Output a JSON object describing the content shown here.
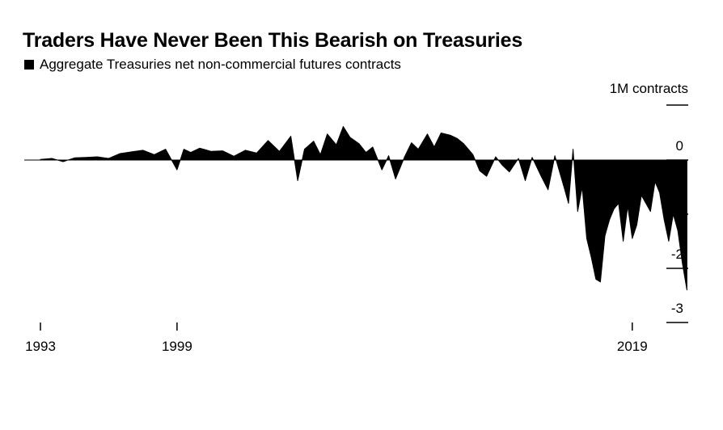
{
  "chart_data": {
    "type": "area",
    "title": "Traders Have Never Been This Bearish on Treasuries",
    "legend": [
      {
        "label": "Aggregate Treasuries net non-commercial futures contracts",
        "color": "#000000"
      }
    ],
    "unit_label": "1M contracts",
    "xlabel": "",
    "ylabel": "",
    "x_ticks": [
      {
        "label": "1993",
        "value": 1993
      },
      {
        "label": "1999",
        "value": 1999
      },
      {
        "label": "2019",
        "value": 2019
      }
    ],
    "y_ticks": [
      {
        "label": "0",
        "value": 0
      },
      {
        "label": "-1",
        "value": -1
      },
      {
        "label": "-2",
        "value": -2
      },
      {
        "label": "-3",
        "value": -3
      }
    ],
    "xlim": [
      1993,
      2021.6
    ],
    "ylim": [
      -3,
      1
    ],
    "grid": false,
    "legend_position": "top-left",
    "color": "#000000",
    "series": [
      {
        "x": [
          1993.0,
          1993.5,
          1994.0,
          1994.5,
          1995.0,
          1995.5,
          1996.0,
          1996.5,
          1997.0,
          1997.5,
          1998.0,
          1998.5,
          1999.0,
          1999.3,
          1999.6,
          2000.0,
          2000.5,
          2001.0,
          2001.5,
          2002.0,
          2002.5,
          2003.0,
          2003.5,
          2004.0,
          2004.3,
          2004.6,
          2005.0,
          2005.3,
          2005.6,
          2006.0,
          2006.3,
          2006.6,
          2007.0,
          2007.3,
          2007.6,
          2008.0,
          2008.3,
          2008.6,
          2009.0,
          2009.3,
          2009.6,
          2010.0,
          2010.3,
          2010.6,
          2011.0,
          2011.3,
          2011.6,
          2012.0,
          2012.3,
          2012.6,
          2013.0,
          2013.3,
          2013.6,
          2014.0,
          2014.3,
          2014.6,
          2015.0,
          2015.3,
          2015.6,
          2016.0,
          2016.2,
          2016.4,
          2016.6,
          2016.8,
          2017.0,
          2017.2,
          2017.4,
          2017.6,
          2017.8,
          2018.0,
          2018.2,
          2018.4,
          2018.6,
          2018.8,
          2019.0,
          2019.2,
          2019.4,
          2019.6,
          2019.8,
          2020.0,
          2020.2,
          2020.4,
          2020.6,
          2020.8,
          2021.0,
          2021.2,
          2021.4
        ],
        "y": [
          0.01,
          0.03,
          -0.03,
          0.04,
          0.05,
          0.06,
          0.03,
          0.12,
          0.15,
          0.18,
          0.1,
          0.2,
          -0.18,
          0.2,
          0.14,
          0.22,
          0.16,
          0.17,
          0.07,
          0.18,
          0.13,
          0.36,
          0.16,
          0.44,
          -0.38,
          0.2,
          0.35,
          0.1,
          0.48,
          0.28,
          0.62,
          0.42,
          0.3,
          0.14,
          0.24,
          -0.18,
          0.08,
          -0.35,
          0.06,
          0.32,
          0.2,
          0.48,
          0.24,
          0.5,
          0.46,
          0.4,
          0.3,
          0.1,
          -0.2,
          -0.3,
          0.06,
          -0.1,
          -0.22,
          0.03,
          -0.38,
          0.05,
          -0.3,
          -0.55,
          0.08,
          -0.5,
          -0.8,
          0.2,
          -0.95,
          -0.5,
          -1.45,
          -1.8,
          -2.2,
          -2.25,
          -1.4,
          -1.1,
          -0.9,
          -0.8,
          -1.5,
          -0.85,
          -1.45,
          -1.2,
          -0.65,
          -0.8,
          -0.95,
          -0.4,
          -0.6,
          -1.1,
          -1.5,
          -1.0,
          -1.3,
          -1.9,
          -2.4
        ]
      }
    ]
  }
}
